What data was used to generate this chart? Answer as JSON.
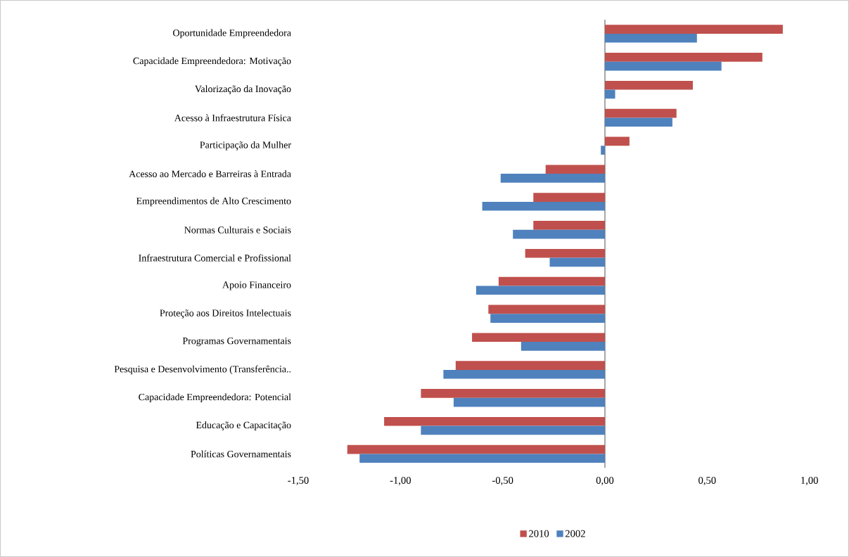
{
  "chart_data": {
    "type": "bar",
    "orientation": "horizontal",
    "categories": [
      "Oportunidade Empreendedora",
      "Capacidade Empreendedora: Motivação",
      "Valorização da Inovação",
      "Acesso à Infraestrutura Física",
      "Participação da Mulher",
      "Acesso ao Mercado e Barreiras à Entrada",
      "Empreendimentos de Alto Crescimento",
      "Normas Culturais e Sociais",
      "Infraestrutura Comercial e Profissional",
      "Apoio Financeiro",
      "Proteção aos Direitos Intelectuais",
      "Programas Governamentais",
      "Pesquisa e Desenvolvimento (Transferência..",
      "Capacidade Empreendedora: Potencial",
      "Educação e Capacitação",
      "Políticas Governamentais"
    ],
    "series": [
      {
        "name": "2010",
        "color": "#c0504d",
        "values": [
          0.87,
          0.77,
          0.43,
          0.35,
          0.12,
          -0.29,
          -0.35,
          -0.35,
          -0.39,
          -0.52,
          -0.57,
          -0.65,
          -0.73,
          -0.9,
          -1.08,
          -1.26
        ]
      },
      {
        "name": "2002",
        "color": "#4f81bd",
        "values": [
          0.45,
          0.57,
          0.05,
          0.33,
          -0.02,
          -0.51,
          -0.6,
          -0.45,
          -0.27,
          -0.63,
          -0.56,
          -0.41,
          -0.79,
          -0.74,
          -0.9,
          -1.2
        ]
      }
    ],
    "xlim": [
      -1.5,
      1.0
    ],
    "xticks": [
      {
        "value": -1.5,
        "label": "-1,50"
      },
      {
        "value": -1.0,
        "label": "-1,00"
      },
      {
        "value": -0.5,
        "label": "-0,50"
      },
      {
        "value": 0.0,
        "label": "0,00"
      },
      {
        "value": 0.5,
        "label": "0,50"
      },
      {
        "value": 1.0,
        "label": "1,00"
      }
    ],
    "legend": "bottom"
  }
}
